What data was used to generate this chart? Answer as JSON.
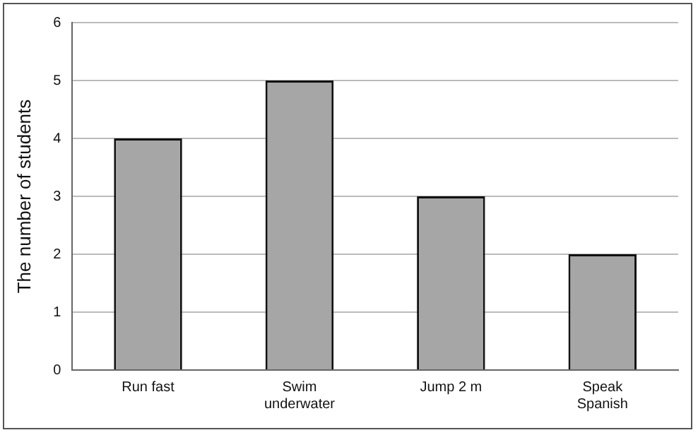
{
  "chart_data": {
    "type": "bar",
    "ylabel": "The number of students",
    "categories": [
      "Run fast",
      "Swim\nunderwater",
      "Jump 2 m",
      "Speak\nSpanish"
    ],
    "values": [
      4,
      5,
      3,
      2
    ],
    "color": "#a6a6a6",
    "ylim": [
      0,
      6
    ],
    "yticks": [
      0,
      1,
      2,
      3,
      4,
      5,
      6
    ],
    "grid": "y",
    "legend": false
  }
}
